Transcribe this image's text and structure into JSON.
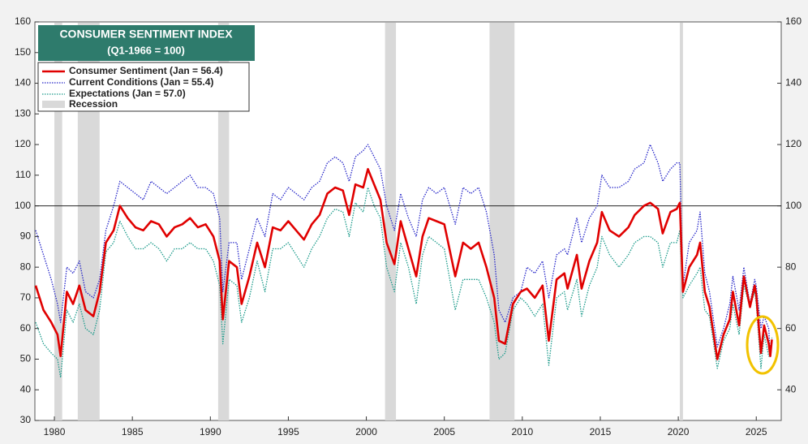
{
  "chart_data": {
    "type": "line",
    "title": "CONSUMER SENTIMENT INDEX",
    "subtitle": "(Q1-1966 = 100)",
    "recession_label": "Recession",
    "recession_color": "#d9d9d9",
    "recessions": [
      [
        1980.0,
        1980.5
      ],
      [
        1981.5,
        1982.9
      ],
      [
        1990.5,
        1991.2
      ],
      [
        2001.2,
        2001.9
      ],
      [
        2007.9,
        2009.5
      ],
      [
        2020.1,
        2020.3
      ]
    ],
    "hline": 100,
    "xlim": [
      1978.75,
      2026.6
    ],
    "xticks": [
      1980,
      1985,
      1990,
      1995,
      2000,
      2005,
      2010,
      2015,
      2020,
      2025
    ],
    "ylim": [
      30,
      160
    ],
    "yticks": [
      30,
      40,
      50,
      60,
      70,
      80,
      90,
      100,
      110,
      120,
      130,
      140,
      150,
      160
    ],
    "y2lim": [
      30,
      160
    ],
    "y2ticks": [
      40,
      60,
      80,
      100,
      120,
      140,
      160
    ],
    "x": [
      1978.8,
      1979.3,
      1979.8,
      1980.2,
      1980.4,
      1980.8,
      1981.2,
      1981.6,
      1982.0,
      1982.5,
      1982.9,
      1983.3,
      1983.8,
      1984.2,
      1984.7,
      1985.2,
      1985.7,
      1986.2,
      1986.7,
      1987.2,
      1987.7,
      1988.2,
      1988.7,
      1989.2,
      1989.7,
      1990.2,
      1990.6,
      1990.8,
      1991.2,
      1991.7,
      1992.0,
      1992.5,
      1993.0,
      1993.5,
      1994.0,
      1994.5,
      1995.0,
      1995.5,
      1996.0,
      1996.5,
      1997.0,
      1997.5,
      1998.0,
      1998.5,
      1998.9,
      1999.3,
      1999.8,
      2000.1,
      2000.5,
      2000.9,
      2001.3,
      2001.8,
      2002.2,
      2002.7,
      2003.2,
      2003.6,
      2004.0,
      2004.5,
      2005.0,
      2005.7,
      2006.2,
      2006.7,
      2007.2,
      2007.7,
      2008.2,
      2008.5,
      2008.9,
      2009.4,
      2009.9,
      2010.3,
      2010.8,
      2011.3,
      2011.7,
      2012.2,
      2012.7,
      2012.9,
      2013.5,
      2013.8,
      2014.3,
      2014.8,
      2015.1,
      2015.6,
      2016.2,
      2016.8,
      2017.2,
      2017.8,
      2018.2,
      2018.7,
      2019.0,
      2019.5,
      2019.9,
      2020.1,
      2020.3,
      2020.7,
      2021.2,
      2021.4,
      2021.7,
      2022.0,
      2022.5,
      2022.9,
      2023.3,
      2023.5,
      2023.9,
      2024.2,
      2024.6,
      2024.9,
      2025.0,
      2025.3,
      2025.5,
      2025.8,
      2025.9,
      2026.0
    ],
    "series": [
      {
        "name": "Consumer Sentiment (Jan = 56.4)",
        "color": "#e00000",
        "style": "solid",
        "width": 2.6,
        "values": [
          74,
          66,
          62,
          58,
          51,
          72,
          68,
          74,
          66,
          64,
          72,
          88,
          92,
          100,
          96,
          93,
          92,
          95,
          94,
          90,
          93,
          94,
          96,
          93,
          94,
          90,
          82,
          63,
          82,
          80,
          68,
          77,
          88,
          80,
          93,
          92,
          95,
          92,
          89,
          94,
          97,
          104,
          106,
          105,
          97,
          107,
          106,
          112,
          107,
          102,
          88,
          81,
          95,
          86,
          77,
          90,
          96,
          95,
          94,
          77,
          88,
          86,
          88,
          80,
          70,
          56,
          55,
          68,
          72,
          73,
          70,
          74,
          56,
          76,
          78,
          73,
          84,
          73,
          82,
          88,
          98,
          92,
          90,
          93,
          97,
          100,
          101,
          99,
          91,
          98,
          99,
          101,
          72,
          80,
          84,
          88,
          72,
          67,
          50,
          58,
          63,
          72,
          61,
          77,
          67,
          74,
          71,
          52,
          61,
          55,
          51,
          56.4
        ]
      },
      {
        "name": "Current Conditions  (Jan = 55.4)",
        "color": "#2424c8",
        "style": "dotted",
        "width": 1.3,
        "values": [
          92,
          84,
          76,
          68,
          62,
          80,
          78,
          82,
          72,
          70,
          76,
          92,
          100,
          108,
          106,
          104,
          102,
          108,
          106,
          104,
          106,
          108,
          110,
          106,
          106,
          104,
          96,
          72,
          88,
          88,
          76,
          86,
          96,
          90,
          104,
          102,
          106,
          104,
          102,
          106,
          108,
          114,
          116,
          114,
          108,
          116,
          118,
          120,
          116,
          112,
          100,
          92,
          104,
          96,
          90,
          102,
          106,
          104,
          106,
          94,
          106,
          104,
          106,
          98,
          84,
          66,
          62,
          70,
          72,
          80,
          78,
          82,
          70,
          84,
          86,
          84,
          96,
          88,
          96,
          100,
          110,
          106,
          106,
          108,
          112,
          114,
          120,
          114,
          108,
          112,
          114,
          114,
          74,
          88,
          92,
          98,
          78,
          72,
          54,
          60,
          68,
          77,
          66,
          80,
          68,
          76,
          74,
          60,
          64,
          60,
          51,
          55.4
        ]
      },
      {
        "name": "Expectations  (Jan = 57.0)",
        "color": "#1a9a8a",
        "style": "dotted",
        "width": 1.3,
        "values": [
          62,
          55,
          52,
          50,
          44,
          66,
          62,
          68,
          60,
          58,
          66,
          85,
          88,
          95,
          90,
          86,
          86,
          88,
          86,
          82,
          86,
          86,
          88,
          86,
          86,
          82,
          74,
          55,
          76,
          74,
          62,
          70,
          82,
          72,
          86,
          86,
          88,
          84,
          80,
          86,
          90,
          96,
          99,
          98,
          90,
          101,
          98,
          106,
          100,
          96,
          80,
          72,
          88,
          80,
          68,
          84,
          90,
          88,
          86,
          66,
          76,
          76,
          76,
          70,
          62,
          50,
          52,
          66,
          70,
          68,
          64,
          68,
          48,
          70,
          72,
          66,
          76,
          64,
          74,
          80,
          90,
          84,
          80,
          84,
          88,
          90,
          90,
          88,
          80,
          88,
          88,
          92,
          70,
          74,
          78,
          80,
          66,
          64,
          47,
          56,
          60,
          68,
          58,
          74,
          67,
          72,
          68,
          47,
          58,
          51,
          51,
          57.0
        ]
      }
    ]
  }
}
